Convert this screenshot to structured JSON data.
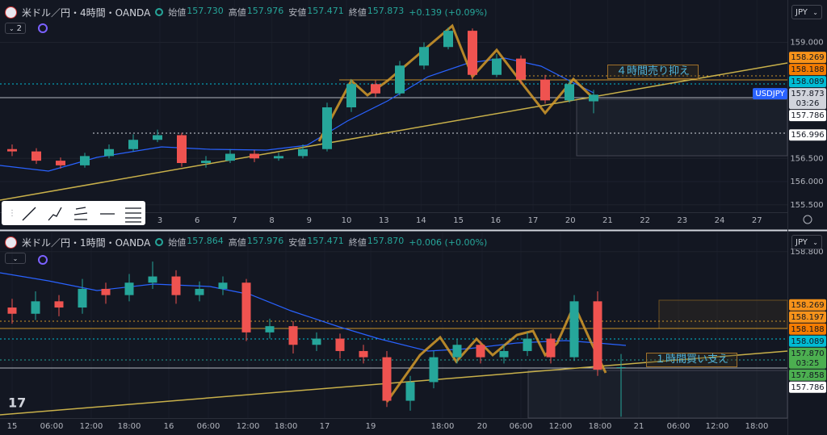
{
  "panels": [
    {
      "symbol": "米ドル／円・4時間・OANDA",
      "interval_selector": "2",
      "currency": "JPY",
      "quote": [
        {
          "label": "始値",
          "value": "157.730"
        },
        {
          "label": "高値",
          "value": "157.976"
        },
        {
          "label": "安値",
          "value": "157.471"
        },
        {
          "label": "終値",
          "value": "157.873"
        }
      ],
      "change": "+0.139 (+0.09%)",
      "price_ticks": [
        {
          "value": 159,
          "label": "159.000"
        },
        {
          "value": 156.5,
          "label": "156.500"
        },
        {
          "value": 156,
          "label": "156.000"
        },
        {
          "value": 155.5,
          "label": "155.500"
        }
      ],
      "price_badges": [
        {
          "value": 158.269,
          "label": "158.269",
          "color": "#f7931a"
        },
        {
          "value": 158.188,
          "label": "158.188",
          "color": "#f57c00"
        },
        {
          "value": 158.089,
          "label": "158.089",
          "color": "#00bcd4"
        },
        {
          "value": 157.873,
          "label": "157.873",
          "countdown": "03:26",
          "color": "#d1d4dc"
        },
        {
          "value": 157.786,
          "label": "157.786",
          "color": "#ffffff"
        },
        {
          "value": 156.996,
          "label": "156.996",
          "color": "#ffffff"
        }
      ],
      "symbol_tag": "USDJPY",
      "time_ticks": [
        "3",
        "6",
        "7",
        "8",
        "9",
        "10",
        "13",
        "14",
        "15",
        "16",
        "17",
        "20",
        "21",
        "22",
        "23",
        "24",
        "27"
      ],
      "annotation": "４時間売り抑え",
      "candles": [
        [
          156.7,
          156.8,
          156.55,
          156.65
        ],
        [
          156.65,
          156.72,
          156.38,
          156.45
        ],
        [
          156.45,
          156.52,
          156.28,
          156.35
        ],
        [
          156.35,
          156.62,
          156.3,
          156.55
        ],
        [
          156.55,
          156.8,
          156.5,
          156.7
        ],
        [
          156.7,
          157.02,
          156.65,
          156.9
        ],
        [
          156.9,
          157.12,
          156.85,
          157.0
        ],
        [
          157.0,
          157.05,
          156.32,
          156.4
        ],
        [
          156.4,
          156.55,
          156.3,
          156.45
        ],
        [
          156.45,
          156.7,
          156.4,
          156.6
        ],
        [
          156.6,
          156.68,
          156.42,
          156.5
        ],
        [
          156.5,
          156.62,
          156.45,
          156.55
        ],
        [
          156.55,
          156.8,
          156.5,
          156.7
        ],
        [
          156.7,
          157.7,
          156.65,
          157.6
        ],
        [
          157.6,
          158.2,
          157.5,
          158.1
        ],
        [
          158.1,
          158.18,
          157.82,
          157.9
        ],
        [
          157.9,
          158.6,
          157.85,
          158.5
        ],
        [
          158.5,
          159.0,
          158.42,
          158.9
        ],
        [
          158.9,
          159.32,
          158.85,
          159.25
        ],
        [
          159.25,
          159.3,
          158.2,
          158.3
        ],
        [
          158.3,
          158.75,
          158.25,
          158.65
        ],
        [
          158.65,
          158.72,
          158.1,
          158.2
        ],
        [
          158.2,
          158.3,
          157.68,
          157.75
        ],
        [
          157.75,
          158.18,
          157.7,
          158.1
        ],
        [
          157.73,
          157.976,
          157.471,
          157.873
        ]
      ]
    },
    {
      "symbol": "米ドル／円・1時間・OANDA",
      "currency": "JPY",
      "quote": [
        {
          "label": "始値",
          "value": "157.864"
        },
        {
          "label": "高値",
          "value": "157.976"
        },
        {
          "label": "安値",
          "value": "157.471"
        },
        {
          "label": "終値",
          "value": "157.870"
        }
      ],
      "change": "+0.006 (+0.00%)",
      "price_ticks": [
        {
          "value": 158.8,
          "label": "158.800"
        }
      ],
      "price_badges": [
        {
          "value": 158.269,
          "label": "158.269",
          "color": "#f7931a"
        },
        {
          "value": 158.197,
          "label": "158.197",
          "color": "#f7931a"
        },
        {
          "value": 158.188,
          "label": "158.188",
          "color": "#f57c00"
        },
        {
          "value": 158.089,
          "label": "158.089",
          "color": "#00bcd4"
        },
        {
          "value": 157.87,
          "label": "157.870",
          "countdown": "03:25",
          "color": "#4caf50"
        },
        {
          "value": 157.858,
          "label": "157.858",
          "color": "#4caf50"
        },
        {
          "value": 157.786,
          "label": "157.786",
          "color": "#ffffff"
        }
      ],
      "time_ticks": [
        "15",
        "06:00",
        "12:00",
        "18:00",
        "16",
        "06:00",
        "12:00",
        "18:00",
        "17",
        "19",
        "18:00",
        "20",
        "06:00",
        "12:00",
        "18:00",
        "21",
        "06:00",
        "12:00",
        "18:00"
      ],
      "annotation": "１時間買い支え",
      "candles": [
        [
          158.35,
          158.42,
          158.22,
          158.3
        ],
        [
          158.3,
          158.48,
          158.25,
          158.4
        ],
        [
          158.4,
          158.45,
          158.28,
          158.35
        ],
        [
          158.35,
          158.58,
          158.3,
          158.5
        ],
        [
          158.5,
          158.55,
          158.38,
          158.45
        ],
        [
          158.45,
          158.62,
          158.4,
          158.55
        ],
        [
          158.55,
          158.72,
          158.5,
          158.6
        ],
        [
          158.6,
          158.65,
          158.38,
          158.45
        ],
        [
          158.45,
          158.56,
          158.4,
          158.5
        ],
        [
          158.5,
          158.6,
          158.45,
          158.55
        ],
        [
          158.55,
          158.58,
          158.08,
          158.15
        ],
        [
          158.15,
          158.26,
          158.1,
          158.2
        ],
        [
          158.2,
          158.24,
          157.98,
          158.05
        ],
        [
          158.05,
          158.15,
          158.0,
          158.1
        ],
        [
          158.1,
          158.14,
          157.94,
          158.0
        ],
        [
          158.0,
          158.05,
          157.9,
          157.95
        ],
        [
          157.95,
          158.0,
          157.55,
          157.6
        ],
        [
          157.6,
          157.8,
          157.52,
          157.75
        ],
        [
          157.75,
          158.0,
          157.7,
          157.95
        ],
        [
          157.95,
          158.1,
          157.9,
          158.05
        ],
        [
          158.05,
          158.08,
          157.9,
          157.95
        ],
        [
          157.95,
          158.05,
          157.9,
          158.0
        ],
        [
          158.0,
          158.15,
          157.96,
          158.1
        ],
        [
          158.1,
          158.14,
          157.9,
          157.95
        ],
        [
          157.95,
          158.45,
          157.92,
          158.4
        ],
        [
          158.4,
          158.48,
          157.8,
          157.85
        ],
        [
          157.864,
          157.976,
          157.471,
          157.87
        ]
      ]
    }
  ]
}
